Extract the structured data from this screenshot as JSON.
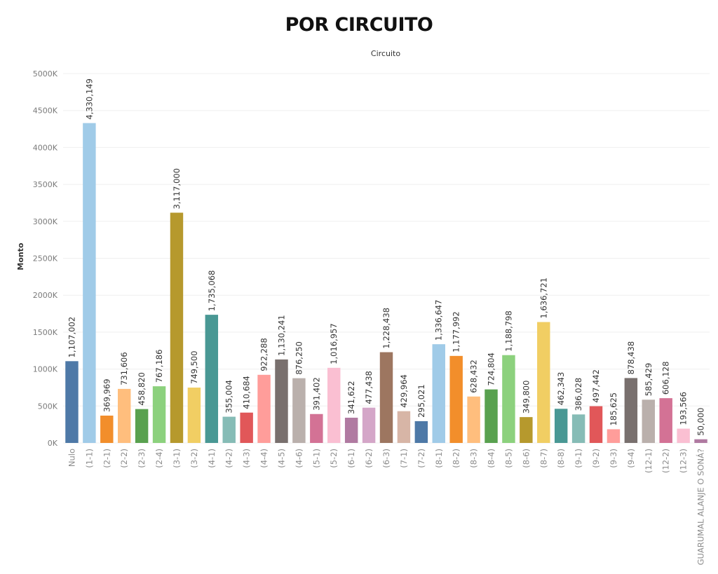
{
  "chart_data": {
    "type": "bar",
    "title": "POR CIRCUITO",
    "header": "Circuito",
    "ylabel": "Monto",
    "ylim": [
      0,
      5000000
    ],
    "yticks": [
      {
        "value": 0,
        "label": "0K"
      },
      {
        "value": 500000,
        "label": "500K"
      },
      {
        "value": 1000000,
        "label": "1000K"
      },
      {
        "value": 1500000,
        "label": "1500K"
      },
      {
        "value": 2000000,
        "label": "2000K"
      },
      {
        "value": 2500000,
        "label": "2500K"
      },
      {
        "value": 3000000,
        "label": "3000K"
      },
      {
        "value": 3500000,
        "label": "3500K"
      },
      {
        "value": 4000000,
        "label": "4000K"
      },
      {
        "value": 4500000,
        "label": "4500K"
      },
      {
        "value": 5000000,
        "label": "5000K"
      }
    ],
    "grid": true,
    "categories": [
      "Nulo",
      "(1-1)",
      "(2-1)",
      "(2-2)",
      "(2-3)",
      "(2-4)",
      "(3-1)",
      "(3-2)",
      "(4-1)",
      "(4-2)",
      "(4-3)",
      "(4-4)",
      "(4-5)",
      "(4-6)",
      "(5-1)",
      "(5-2)",
      "(6-1)",
      "(6-2)",
      "(6-3)",
      "(7-1)",
      "(7-2)",
      "(8-1)",
      "(8-2)",
      "(8-3)",
      "(8-4)",
      "(8-5)",
      "(8-6)",
      "(8-7)",
      "(8-8)",
      "(9-1)",
      "(9-2)",
      "(9-3)",
      "(9-4)",
      "(12-1)",
      "(12-2)",
      "(12-3)",
      "GUARUMAL ALANJE O SONÁ?"
    ],
    "values": [
      1107002,
      4330149,
      369969,
      731606,
      458820,
      767186,
      3117000,
      749500,
      1735068,
      355004,
      410684,
      922288,
      1130241,
      876250,
      391402,
      1016957,
      341622,
      477438,
      1228438,
      429964,
      295021,
      1336647,
      1177992,
      628432,
      724804,
      1188798,
      349800,
      1636721,
      462343,
      386028,
      497442,
      185625,
      878438,
      585429,
      606128,
      193566,
      50000
    ],
    "value_labels": [
      "1,107,002",
      "4,330,149",
      "369,969",
      "731,606",
      "458,820",
      "767,186",
      "3,117,000",
      "749,500",
      "1,735,068",
      "355,004",
      "410,684",
      "922,288",
      "1,130,241",
      "876,250",
      "391,402",
      "1,016,957",
      "341,622",
      "477,438",
      "1,228,438",
      "429,964",
      "295,021",
      "1,336,647",
      "1,177,992",
      "628,432",
      "724,804",
      "1,188,798",
      "349,800",
      "1,636,721",
      "462,343",
      "386,028",
      "497,442",
      "185,625",
      "878,438",
      "585,429",
      "606,128",
      "193,566",
      "50,000"
    ],
    "colors": [
      "#4e79a7",
      "#a0cbe8",
      "#f28e2b",
      "#ffbe7d",
      "#59a14f",
      "#8cd17d",
      "#b6992d",
      "#f1ce63",
      "#499894",
      "#86bcb6",
      "#e15759",
      "#ff9d9a",
      "#79706e",
      "#bab0ac",
      "#d37295",
      "#fabfd2",
      "#b07aa1",
      "#d4a6c8",
      "#9d7660",
      "#d7b5a6",
      "#4e79a7",
      "#a0cbe8",
      "#f28e2b",
      "#ffbe7d",
      "#59a14f",
      "#8cd17d",
      "#b6992d",
      "#f1ce63",
      "#499894",
      "#86bcb6",
      "#e15759",
      "#ff9d9a",
      "#79706e",
      "#bab0ac",
      "#d37295",
      "#fabfd2",
      "#b07aa1"
    ]
  }
}
